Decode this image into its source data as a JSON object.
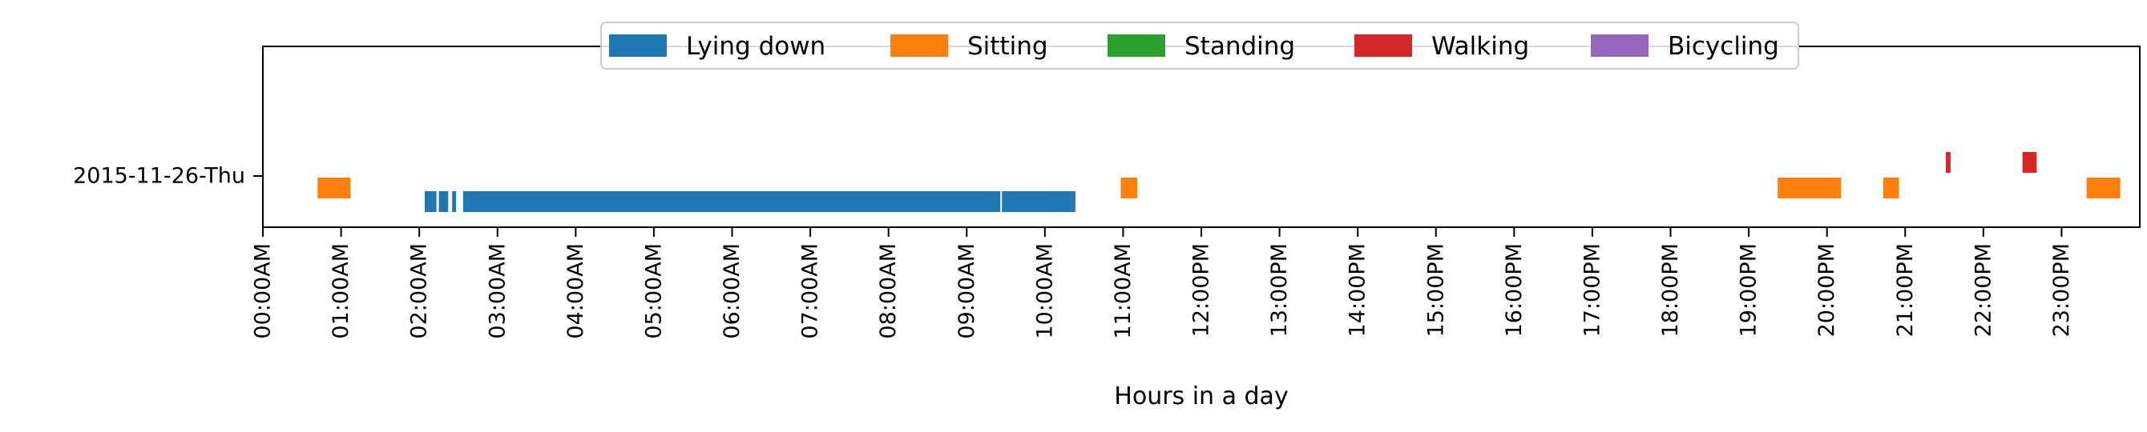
{
  "chart_data": {
    "type": "timeline",
    "xlabel": "Hours in a day",
    "xlim": [
      0,
      24
    ],
    "x_ticks": [
      {
        "value": 0,
        "label": "00:00AM"
      },
      {
        "value": 1,
        "label": "01:00AM"
      },
      {
        "value": 2,
        "label": "02:00AM"
      },
      {
        "value": 3,
        "label": "03:00AM"
      },
      {
        "value": 4,
        "label": "04:00AM"
      },
      {
        "value": 5,
        "label": "05:00AM"
      },
      {
        "value": 6,
        "label": "06:00AM"
      },
      {
        "value": 7,
        "label": "07:00AM"
      },
      {
        "value": 8,
        "label": "08:00AM"
      },
      {
        "value": 9,
        "label": "09:00AM"
      },
      {
        "value": 10,
        "label": "10:00AM"
      },
      {
        "value": 11,
        "label": "11:00AM"
      },
      {
        "value": 12,
        "label": "12:00PM"
      },
      {
        "value": 13,
        "label": "13:00PM"
      },
      {
        "value": 14,
        "label": "14:00PM"
      },
      {
        "value": 15,
        "label": "15:00PM"
      },
      {
        "value": 16,
        "label": "16:00PM"
      },
      {
        "value": 17,
        "label": "17:00PM"
      },
      {
        "value": 18,
        "label": "18:00PM"
      },
      {
        "value": 19,
        "label": "19:00PM"
      },
      {
        "value": 20,
        "label": "20:00PM"
      },
      {
        "value": 21,
        "label": "21:00PM"
      },
      {
        "value": 22,
        "label": "22:00PM"
      },
      {
        "value": 23,
        "label": "23:00PM"
      }
    ],
    "y_categories": [
      "2015-11-26-Thu"
    ],
    "legend_position": "top-center",
    "grid": false,
    "series": [
      {
        "name": "Lying down",
        "color": "#1f77b4",
        "lane": 0,
        "segments": [
          [
            2.07,
            2.22
          ],
          [
            2.25,
            2.37
          ],
          [
            2.42,
            2.47
          ],
          [
            2.56,
            9.43
          ],
          [
            9.45,
            10.39
          ]
        ]
      },
      {
        "name": "Sitting",
        "color": "#ff7f0e",
        "lane": 1,
        "segments": [
          [
            0.7,
            1.12
          ],
          [
            10.97,
            11.18
          ],
          [
            19.37,
            20.18
          ],
          [
            20.72,
            20.92
          ],
          [
            23.32,
            23.75
          ]
        ]
      },
      {
        "name": "Standing",
        "color": "#2ca02c",
        "lane": 2,
        "segments": []
      },
      {
        "name": "Walking",
        "color": "#d62728",
        "lane": 3,
        "segments": [
          [
            21.52,
            21.58
          ],
          [
            22.5,
            22.68
          ]
        ]
      },
      {
        "name": "Bicycling",
        "color": "#9467bd",
        "lane": 4,
        "segments": []
      }
    ]
  }
}
